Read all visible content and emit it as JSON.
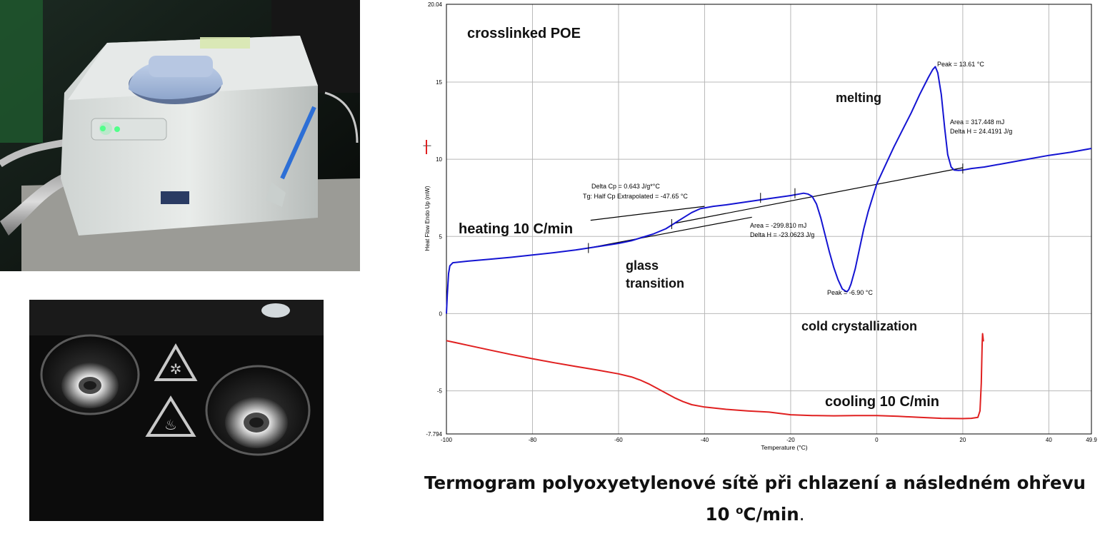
{
  "caption": {
    "line1": "Termogram polyoxyetylenové sítě při chlazení a následném ohřevu",
    "line2_value": "10 ",
    "line2_deg": "o",
    "line2_unit": "C/min",
    "line2_end": "."
  },
  "chart_data": {
    "type": "line",
    "xlabel": "Temperature (°C)",
    "ylabel": "Heat Flow Endo Up (mW)",
    "xlim": [
      -100,
      49.9
    ],
    "ylim": [
      -7.794,
      20.04
    ],
    "x_ticks": [
      "-100",
      "-80",
      "-60",
      "-40",
      "-20",
      "0",
      "20",
      "40",
      "49.9"
    ],
    "x_tick_values": [
      -100,
      -80,
      -60,
      -40,
      -20,
      0,
      20,
      40,
      49.9
    ],
    "y_ticks": [
      "20.04",
      "15",
      "10",
      "5",
      "0",
      "-5",
      "-7.794"
    ],
    "y_tick_values": [
      20.04,
      15,
      10,
      5,
      0,
      -5,
      -7.794
    ],
    "grid": true,
    "colors": {
      "heating": "#1414d2",
      "cooling": "#e02020",
      "baseline": "#000000",
      "grid": "#b8b8b8"
    },
    "series": [
      {
        "key": "heating",
        "points": [
          [
            -100,
            0
          ],
          [
            -99.8,
            1.2
          ],
          [
            -99.5,
            2.6
          ],
          [
            -99.2,
            3.1
          ],
          [
            -98.5,
            3.3
          ],
          [
            -95,
            3.4
          ],
          [
            -90,
            3.52
          ],
          [
            -85,
            3.65
          ],
          [
            -80,
            3.8
          ],
          [
            -75,
            3.95
          ],
          [
            -70,
            4.12
          ],
          [
            -67,
            4.25
          ],
          [
            -64,
            4.38
          ],
          [
            -60,
            4.55
          ],
          [
            -57,
            4.72
          ],
          [
            -55,
            4.9
          ],
          [
            -52,
            5.15
          ],
          [
            -49,
            5.5
          ],
          [
            -47,
            5.85
          ],
          [
            -45,
            6.2
          ],
          [
            -43,
            6.55
          ],
          [
            -41,
            6.8
          ],
          [
            -38,
            6.95
          ],
          [
            -35,
            7.05
          ],
          [
            -30,
            7.25
          ],
          [
            -25,
            7.45
          ],
          [
            -20,
            7.65
          ],
          [
            -18,
            7.75
          ],
          [
            -17,
            7.8
          ],
          [
            -16,
            7.75
          ],
          [
            -15,
            7.6
          ],
          [
            -14,
            7.1
          ],
          [
            -13,
            6.2
          ],
          [
            -12,
            5.1
          ],
          [
            -11,
            4.0
          ],
          [
            -10,
            3.0
          ],
          [
            -9,
            2.2
          ],
          [
            -8,
            1.6
          ],
          [
            -7.2,
            1.45
          ],
          [
            -6.9,
            1.42
          ],
          [
            -6.5,
            1.55
          ],
          [
            -6,
            1.9
          ],
          [
            -5,
            2.9
          ],
          [
            -4,
            4.2
          ],
          [
            -3,
            5.5
          ],
          [
            -2,
            6.6
          ],
          [
            -1,
            7.5
          ],
          [
            0,
            8.4
          ],
          [
            2,
            9.6
          ],
          [
            4,
            10.8
          ],
          [
            6,
            11.9
          ],
          [
            8,
            13.0
          ],
          [
            10,
            14.2
          ],
          [
            12,
            15.3
          ],
          [
            13,
            15.8
          ],
          [
            13.61,
            16.0
          ],
          [
            14.2,
            15.6
          ],
          [
            15,
            14.2
          ],
          [
            15.8,
            12.0
          ],
          [
            16.5,
            10.3
          ],
          [
            17.3,
            9.5
          ],
          [
            18,
            9.3
          ],
          [
            19,
            9.28
          ],
          [
            20,
            9.3
          ],
          [
            22,
            9.4
          ],
          [
            25,
            9.5
          ],
          [
            30,
            9.75
          ],
          [
            35,
            10.0
          ],
          [
            40,
            10.25
          ],
          [
            45,
            10.45
          ],
          [
            49.9,
            10.7
          ]
        ]
      },
      {
        "key": "cooling",
        "points": [
          [
            -100,
            -1.75
          ],
          [
            -95,
            -2.05
          ],
          [
            -90,
            -2.35
          ],
          [
            -85,
            -2.65
          ],
          [
            -80,
            -2.92
          ],
          [
            -75,
            -3.18
          ],
          [
            -70,
            -3.42
          ],
          [
            -65,
            -3.65
          ],
          [
            -60,
            -3.9
          ],
          [
            -57,
            -4.1
          ],
          [
            -55,
            -4.3
          ],
          [
            -53,
            -4.55
          ],
          [
            -51,
            -4.85
          ],
          [
            -49,
            -5.15
          ],
          [
            -47,
            -5.45
          ],
          [
            -45,
            -5.7
          ],
          [
            -43,
            -5.9
          ],
          [
            -40,
            -6.05
          ],
          [
            -35,
            -6.2
          ],
          [
            -30,
            -6.3
          ],
          [
            -25,
            -6.38
          ],
          [
            -20,
            -6.55
          ],
          [
            -15,
            -6.6
          ],
          [
            -10,
            -6.62
          ],
          [
            -5,
            -6.6
          ],
          [
            0,
            -6.6
          ],
          [
            5,
            -6.65
          ],
          [
            10,
            -6.72
          ],
          [
            15,
            -6.78
          ],
          [
            20,
            -6.8
          ],
          [
            22,
            -6.78
          ],
          [
            23.5,
            -6.72
          ],
          [
            24,
            -6.3
          ],
          [
            24.3,
            -4.5
          ],
          [
            24.5,
            -2.0
          ],
          [
            24.6,
            -1.3
          ],
          [
            24.8,
            -1.8
          ]
        ]
      }
    ],
    "baselines": [
      {
        "key": "tg-onset-tangent",
        "points": [
          [
            -66.5,
            6.05
          ],
          [
            -40,
            6.95
          ]
        ]
      },
      {
        "key": "tg-end-tangent",
        "points": [
          [
            -67,
            4.25
          ],
          [
            -29,
            6.25
          ]
        ]
      },
      {
        "key": "main-baseline",
        "points": [
          [
            -47,
            5.85
          ],
          [
            20,
            9.45
          ]
        ]
      }
    ],
    "tick_markers": [
      [
        -67,
        4.25
      ],
      [
        -47.65,
        5.8
      ],
      [
        -27,
        7.5
      ],
      [
        -19,
        7.8
      ],
      [
        20,
        9.4
      ]
    ],
    "annotations": {
      "tg": {
        "line1": "Delta Cp = 0.643 J/g*°C",
        "line2": "Tg: Half Cp Extrapolated = -47.65 °C"
      },
      "cryst": {
        "line1": "Area = -299.810 mJ",
        "line2": "Delta H = -23.0623 J/g",
        "peak": "Peak = -6.90 °C"
      },
      "melt": {
        "peak": "Peak = 13.61 °C",
        "line1": "Area = 317.448 mJ",
        "line2": "Delta H = 24.4191 J/g"
      }
    },
    "labels": {
      "title": "crosslinked POE",
      "melting": "melting",
      "heating": "heating 10 C/min",
      "glass1": "glass",
      "glass2": "transition",
      "cold_cryst": "cold crystallization",
      "cooling": "cooling 10 C/min"
    }
  }
}
